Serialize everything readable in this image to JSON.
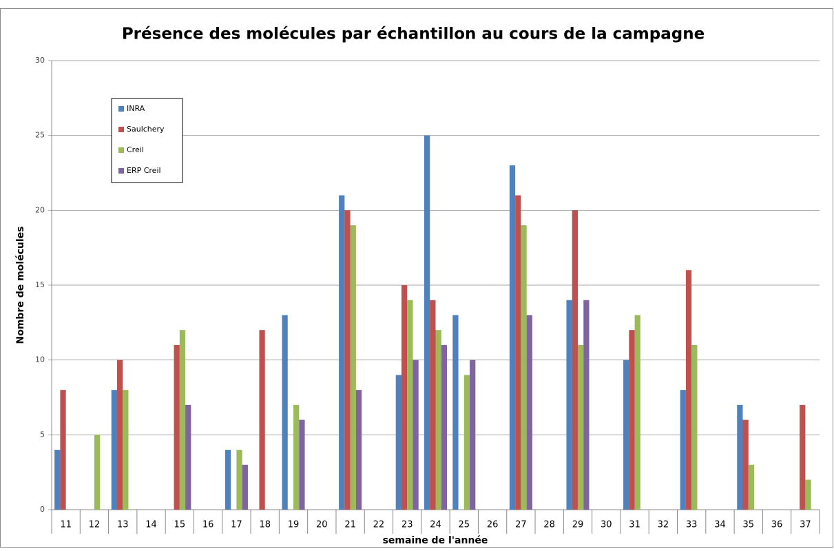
{
  "chart_data": {
    "type": "bar",
    "title": "Présence des molécules par échantillon au cours de la campagne",
    "x_label": "semaine de l'année",
    "y_label": "Nombre de molécules",
    "categories": [
      "11",
      "12",
      "13",
      "14",
      "15",
      "16",
      "17",
      "18",
      "19",
      "20",
      "21",
      "22",
      "23",
      "24",
      "25",
      "26",
      "27",
      "28",
      "29",
      "30",
      "31",
      "32",
      "33",
      "34",
      "35",
      "36",
      "37"
    ],
    "series": [
      {
        "name": "INRA",
        "color": "#4f81bd",
        "values": [
          4,
          0,
          8,
          0,
          0,
          0,
          4,
          0,
          13,
          0,
          21,
          0,
          9,
          25,
          13,
          0,
          23,
          0,
          14,
          0,
          10,
          0,
          8,
          0,
          7,
          0,
          0
        ]
      },
      {
        "name": "Saulchery",
        "color": "#c0504d",
        "values": [
          8,
          0,
          10,
          0,
          11,
          0,
          0,
          12,
          0,
          0,
          20,
          0,
          15,
          14,
          0,
          0,
          21,
          0,
          20,
          0,
          12,
          0,
          16,
          0,
          6,
          0,
          7
        ]
      },
      {
        "name": "Creil",
        "color": "#9bbb59",
        "values": [
          0,
          5,
          8,
          0,
          12,
          0,
          4,
          0,
          7,
          0,
          19,
          0,
          14,
          12,
          9,
          0,
          19,
          0,
          11,
          0,
          13,
          0,
          11,
          0,
          3,
          0,
          2
        ]
      },
      {
        "name": "ERP Creil",
        "color": "#8064a2",
        "values": [
          0,
          0,
          0,
          0,
          7,
          0,
          3,
          0,
          6,
          0,
          8,
          0,
          10,
          11,
          10,
          0,
          13,
          0,
          14,
          0,
          0,
          0,
          0,
          0,
          0,
          0,
          0
        ]
      }
    ],
    "ylim": [
      0,
      30
    ],
    "yticks": [
      0,
      5,
      10,
      15,
      20,
      25,
      30
    ],
    "grid": true,
    "legend": "top-left"
  }
}
